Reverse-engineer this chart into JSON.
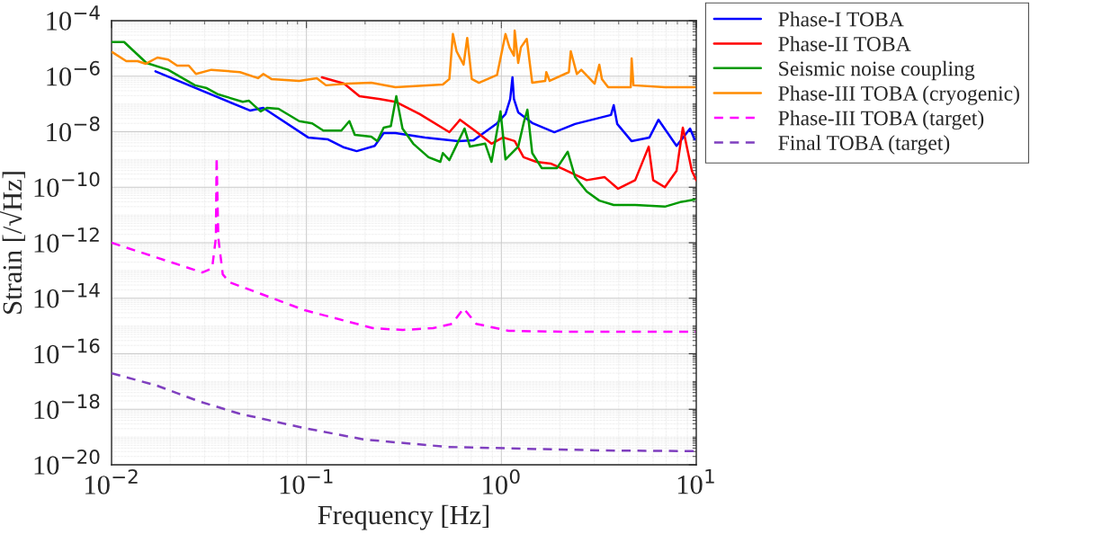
{
  "chart_data": {
    "type": "line",
    "xlabel": "Frequency [Hz]",
    "ylabel": "Strain [/√Hz]",
    "log": "xy",
    "grid": true,
    "legend": "top right",
    "xlim": [
      0.01,
      10
    ],
    "xticks": [
      {
        "value": 0.01,
        "label": "10$^{−2}$"
      },
      {
        "value": 0.1,
        "label": "10$^{−1}$"
      },
      {
        "value": 1,
        "label": "10$^{0}$"
      },
      {
        "value": 10,
        "label": "10$^{1}$"
      }
    ],
    "ylim": [
      1e-20,
      0.0001
    ],
    "yticks": [
      {
        "value": 1e-20,
        "label": "10$^{−20}$"
      },
      {
        "value": 1e-18,
        "label": "10$^{−18}$"
      },
      {
        "value": 1e-16,
        "label": "10$^{−16}$"
      },
      {
        "value": 1e-14,
        "label": "10$^{−14}$"
      },
      {
        "value": 1e-12,
        "label": "10$^{−12}$"
      },
      {
        "value": 1e-10,
        "label": "10$^{−10}$"
      },
      {
        "value": 1e-08,
        "label": "10$^{−8}$"
      },
      {
        "value": 1e-06,
        "label": "10$^{−6}$"
      },
      {
        "value": 0.0001,
        "label": "10$^{−4}$"
      }
    ],
    "series": [
      {
        "name": "Phase-I TOBA",
        "color": "#0000ff",
        "line_style": "solid",
        "x": [
          0.0168,
          0.0513,
          0.06,
          0.102,
          0.129,
          0.156,
          0.181,
          0.224,
          0.249,
          0.286,
          0.406,
          0.601,
          0.72,
          0.95,
          1.05,
          1.11,
          1.14,
          1.16,
          1.22,
          1.45,
          1.87,
          2.39,
          3.65,
          3.77,
          3.93,
          4.65,
          5.75,
          6.4,
          7.92,
          9.29,
          9.8
        ],
        "values": [
          1.5e-06,
          5.8e-08,
          7.2e-08,
          6.2e-09,
          5.3e-09,
          2.7e-09,
          2e-09,
          3.1e-09,
          8.9e-09,
          8.9e-09,
          6.2e-09,
          4.6e-09,
          4.9e-09,
          2e-08,
          4.3e-08,
          1.5e-07,
          9.1e-07,
          1.5e-07,
          5e-08,
          2e-08,
          9.6e-09,
          1.9e-08,
          4e-08,
          9e-08,
          1.9e-08,
          4.6e-09,
          6.2e-09,
          2.7e-08,
          3.1e-09,
          1.3e-08,
          5.3e-09
        ]
      },
      {
        "name": "Phase-II TOBA",
        "color": "#ff0000",
        "line_style": "solid",
        "x": [
          0.12,
          0.156,
          0.187,
          0.239,
          0.286,
          0.381,
          0.541,
          0.614,
          0.743,
          0.89,
          1.02,
          1.17,
          1.3,
          1.51,
          1.79,
          2.08,
          2.74,
          3.39,
          3.97,
          4.86,
          5.7,
          6.01,
          6.9,
          7.92,
          8.53,
          9.49,
          10
        ],
        "values": [
          9.1e-07,
          5.4e-07,
          1.9e-07,
          1.5e-07,
          1.2e-07,
          4.3e-08,
          9.6e-09,
          2.7e-08,
          1e-08,
          3.7e-09,
          6.2e-09,
          4.6e-09,
          1.2e-09,
          8.2e-10,
          7.1e-10,
          4.5e-10,
          1.8e-10,
          2.3e-10,
          8.8e-11,
          1.8e-10,
          2.9e-09,
          1.8e-10,
          1e-10,
          3.9e-10,
          1.4e-08,
          3.9e-10,
          1.8e-10
        ]
      },
      {
        "name": "Seismic noise coupling",
        "color": "#009900",
        "line_style": "solid",
        "x": [
          0.0101,
          0.0116,
          0.0151,
          0.0195,
          0.0268,
          0.0308,
          0.0353,
          0.0471,
          0.0507,
          0.0582,
          0.0627,
          0.0719,
          0.0918,
          0.107,
          0.122,
          0.151,
          0.166,
          0.177,
          0.215,
          0.231,
          0.249,
          0.271,
          0.289,
          0.311,
          0.353,
          0.423,
          0.486,
          0.501,
          0.541,
          0.647,
          0.69,
          0.826,
          0.89,
          0.99,
          1.05,
          1.22,
          1.3,
          1.36,
          1.44,
          1.61,
          1.93,
          2.19,
          2.39,
          2.74,
          3.18,
          3.77,
          4.86,
          6.9,
          8.26,
          9.8
        ],
        "values": [
          1.7e-05,
          1.7e-05,
          3e-06,
          1.7e-06,
          4.7e-07,
          3.7e-07,
          2.2e-07,
          1.2e-07,
          1.3e-07,
          5.4e-08,
          7.2e-08,
          6.7e-08,
          2.4e-08,
          2e-08,
          1.1e-08,
          1.1e-08,
          2.4e-08,
          7.7e-09,
          6.6e-09,
          4.6e-09,
          1.4e-08,
          1.6e-08,
          1.9e-07,
          1.3e-08,
          3.7e-09,
          1.2e-09,
          8.2e-10,
          1.7e-09,
          9.5e-10,
          1.3e-08,
          2.9e-09,
          3.7e-09,
          8.2e-10,
          5.4e-08,
          1e-09,
          2.9e-09,
          2e-08,
          6.2e-08,
          1.7e-09,
          4.9e-10,
          4.9e-10,
          1.9e-09,
          2.3e-10,
          7e-11,
          3.3e-11,
          2.3e-11,
          2.3e-11,
          2e-11,
          2.9e-11,
          3.6e-11
        ]
      },
      {
        "name": "Phase-III TOBA (cryogenic)",
        "color": "#ff8c00",
        "line_style": "solid",
        "x": [
          0.0101,
          0.0119,
          0.0136,
          0.015,
          0.0172,
          0.0195,
          0.0217,
          0.0249,
          0.0271,
          0.0325,
          0.0456,
          0.0564,
          0.0601,
          0.0661,
          0.0918,
          0.113,
          0.126,
          0.163,
          0.215,
          0.286,
          0.501,
          0.541,
          0.564,
          0.589,
          0.64,
          0.668,
          0.705,
          0.767,
          0.95,
          1.05,
          1.1,
          1.16,
          1.17,
          1.22,
          1.26,
          1.35,
          1.44,
          1.68,
          1.7,
          1.77,
          2.22,
          2.27,
          2.44,
          2.57,
          3.01,
          3.18,
          3.28,
          3.53,
          4.61,
          4.66,
          4.76,
          6.9,
          9.8
        ],
        "values": [
          7.3e-06,
          3.5e-06,
          3.5e-06,
          2.8e-06,
          4.7e-06,
          4e-06,
          2.4e-06,
          2.4e-06,
          1.2e-06,
          1.7e-06,
          1.4e-06,
          8.5e-07,
          1.2e-06,
          7.9e-07,
          6.8e-07,
          8.5e-07,
          4.7e-07,
          5.4e-07,
          5.8e-07,
          4e-07,
          5e-07,
          7.9e-07,
          3.3e-05,
          7.9e-06,
          2.6e-06,
          2.4e-05,
          7.9e-07,
          5.8e-07,
          1.1e-06,
          3.3e-05,
          1.1e-05,
          5.5e-06,
          4.4e-05,
          3e-06,
          1.1e-05,
          2.2e-05,
          5.8e-07,
          6.8e-07,
          1.4e-06,
          6.8e-07,
          1.4e-06,
          7.9e-06,
          1.2e-06,
          1.7e-06,
          5.4e-07,
          2.6e-06,
          7.9e-07,
          4e-07,
          4e-07,
          4.4e-06,
          4.7e-07,
          4e-07,
          4e-07
        ]
      },
      {
        "name": "Phase-III TOBA (target)",
        "color": "#ff00ff",
        "line_style": "dashed",
        "x": [
          0.01,
          0.0292,
          0.0328,
          0.0343,
          0.0346,
          0.0353,
          0.0372,
          0.0402,
          0.098,
          0.219,
          0.311,
          0.447,
          0.558,
          0.64,
          0.743,
          1.09,
          2.04,
          9.9
        ],
        "values": [
          1e-12,
          8.5e-14,
          1.2e-13,
          1.5e-12,
          1.2e-09,
          1.5e-12,
          7.3e-14,
          3.8e-14,
          3.7e-15,
          8.4e-16,
          7.2e-16,
          8.4e-16,
          1.2e-15,
          4.3e-15,
          1.2e-15,
          6.7e-16,
          6.2e-16,
          6.2e-16
        ]
      },
      {
        "name": "Final TOBA (target)",
        "color": "#7f3fbf",
        "line_style": "dashed",
        "x": [
          0.01,
          0.0171,
          0.0277,
          0.0451,
          0.0976,
          0.199,
          0.534,
          1.3,
          3.19,
          9.9
        ],
        "values": [
          2e-17,
          7.1e-18,
          2e-18,
          7e-19,
          2.1e-19,
          8.1e-20,
          4.4e-20,
          3.8e-20,
          3.3e-20,
          3.1e-20
        ]
      }
    ]
  }
}
